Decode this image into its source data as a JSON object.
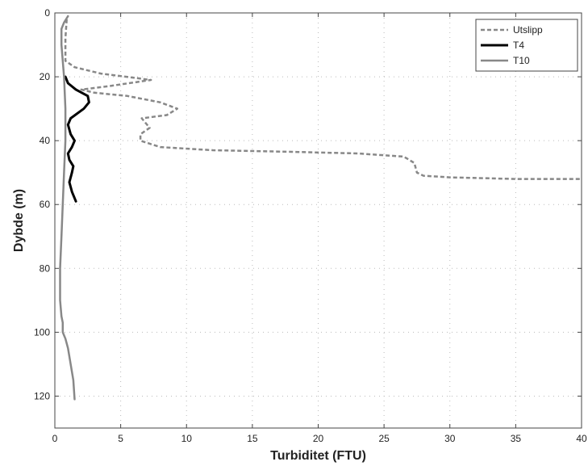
{
  "chart_data": {
    "type": "line",
    "title": "",
    "xlabel": "Turbiditet (FTU)",
    "ylabel": "Dybde (m)",
    "xlim": [
      0,
      40
    ],
    "ylim": [
      0,
      130
    ],
    "y_reversed": true,
    "xticks": [
      "0",
      "5",
      "10",
      "15",
      "20",
      "25",
      "30",
      "35",
      "40"
    ],
    "yticks": [
      "0",
      "20",
      "40",
      "60",
      "80",
      "100",
      "120"
    ],
    "grid": "dotted",
    "legend_position": "top-right",
    "series": [
      {
        "name": "Utslipp",
        "color": "#888888",
        "style": "dashed",
        "x": [
          0.9,
          0.8,
          0.8,
          0.8,
          1.5,
          3.5,
          7.3,
          4.0,
          2.0,
          3.0,
          5.5,
          8.0,
          9.3,
          8.5,
          6.6,
          6.8,
          7.2,
          6.5,
          6.5,
          8.0,
          12.0,
          18.0,
          23.0,
          26.5,
          27.3,
          27.5,
          28.0,
          30.0,
          35.0,
          40.0
        ],
        "y": [
          2,
          8,
          12,
          15,
          17,
          19,
          21,
          23,
          24,
          25,
          26,
          28,
          30,
          32,
          33,
          34,
          36,
          38,
          40,
          42,
          43,
          43.5,
          44,
          45,
          47,
          50,
          51,
          51.5,
          52,
          52
        ]
      },
      {
        "name": "T4",
        "color": "#000000",
        "style": "solid",
        "x": [
          0.8,
          1.0,
          1.6,
          2.5,
          2.6,
          2.2,
          1.2,
          1.0,
          1.2,
          1.5,
          1.3,
          1.0,
          1.1,
          1.4,
          1.3,
          1.1,
          1.3,
          1.6
        ],
        "y": [
          20,
          22,
          24,
          26,
          28,
          30,
          33,
          35,
          38,
          40,
          42,
          44,
          46,
          48,
          50,
          53,
          56,
          59
        ]
      },
      {
        "name": "T10",
        "color": "#888888",
        "style": "solid",
        "x": [
          1.0,
          0.7,
          0.5,
          0.5,
          0.6,
          0.7,
          0.8,
          0.8,
          0.7,
          0.6,
          0.5,
          0.4,
          0.4,
          0.4,
          0.5,
          0.6,
          0.6,
          0.6,
          0.8,
          1.0,
          1.2,
          1.4,
          1.5
        ],
        "y": [
          1,
          3,
          5,
          10,
          15,
          20,
          30,
          40,
          50,
          60,
          70,
          80,
          85,
          90,
          95,
          97,
          99,
          100,
          102,
          105,
          110,
          115,
          121
        ]
      }
    ]
  }
}
